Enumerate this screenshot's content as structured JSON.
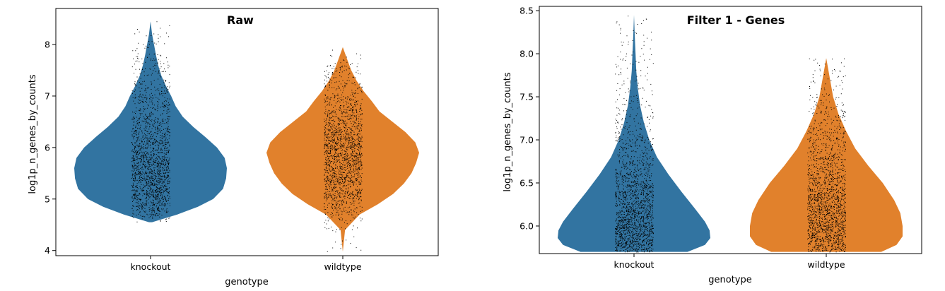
{
  "chart_data": [
    {
      "type": "violin",
      "title": "Raw",
      "xlabel": "genotype",
      "ylabel": "log1p_n_genes_by_counts",
      "categories": [
        "knockout",
        "wildtype"
      ],
      "ylim": [
        3.9,
        8.7
      ],
      "yticks": [
        4,
        5,
        6,
        7,
        8
      ],
      "ytick_labels": [
        "4",
        "5",
        "6",
        "7",
        "8"
      ],
      "colors": [
        "#3274a1",
        "#e1812c"
      ],
      "violins": [
        {
          "category": "knockout",
          "min": 4.55,
          "max": 8.45,
          "density_y": [
            4.55,
            4.7,
            4.85,
            5.0,
            5.2,
            5.4,
            5.6,
            5.8,
            6.0,
            6.2,
            6.4,
            6.6,
            6.8,
            7.0,
            7.2,
            7.4,
            7.6,
            7.8,
            8.0,
            8.2,
            8.45
          ],
          "density_w": [
            0.02,
            0.35,
            0.62,
            0.82,
            0.95,
            0.99,
            1.0,
            0.97,
            0.87,
            0.72,
            0.56,
            0.42,
            0.33,
            0.27,
            0.2,
            0.14,
            0.1,
            0.07,
            0.045,
            0.02,
            0.0
          ]
        },
        {
          "category": "wildtype",
          "min": 3.98,
          "max": 7.95,
          "density_y": [
            3.98,
            4.4,
            4.7,
            4.9,
            5.1,
            5.3,
            5.5,
            5.7,
            5.9,
            6.1,
            6.3,
            6.5,
            6.7,
            6.9,
            7.1,
            7.3,
            7.5,
            7.7,
            7.95
          ],
          "density_w": [
            0.0,
            0.03,
            0.22,
            0.46,
            0.66,
            0.8,
            0.9,
            0.96,
            1.0,
            0.95,
            0.82,
            0.65,
            0.48,
            0.38,
            0.27,
            0.18,
            0.11,
            0.06,
            0.0
          ]
        }
      ]
    },
    {
      "type": "violin",
      "title": "Filter 1 - Genes",
      "xlabel": "genotype",
      "ylabel": "log1p_n_genes_by_counts",
      "categories": [
        "knockout",
        "wildtype"
      ],
      "ylim": [
        5.68,
        8.55
      ],
      "yticks": [
        6.0,
        6.5,
        7.0,
        7.5,
        8.0,
        8.5
      ],
      "ytick_labels": [
        "6.0",
        "6.5",
        "7.0",
        "7.5",
        "8.0",
        "8.5"
      ],
      "colors": [
        "#3274a1",
        "#e1812c"
      ],
      "violins": [
        {
          "category": "knockout",
          "min": 5.7,
          "max": 8.45,
          "density_y": [
            5.7,
            5.78,
            5.86,
            5.95,
            6.05,
            6.2,
            6.4,
            6.6,
            6.8,
            7.0,
            7.2,
            7.4,
            7.6,
            7.8,
            8.0,
            8.2,
            8.45
          ],
          "density_w": [
            0.7,
            0.93,
            1.0,
            0.99,
            0.93,
            0.8,
            0.62,
            0.45,
            0.3,
            0.2,
            0.13,
            0.08,
            0.05,
            0.03,
            0.02,
            0.01,
            0.0
          ]
        },
        {
          "category": "wildtype",
          "min": 5.7,
          "max": 7.95,
          "density_y": [
            5.7,
            5.78,
            5.88,
            6.0,
            6.15,
            6.3,
            6.5,
            6.7,
            6.9,
            7.1,
            7.3,
            7.5,
            7.7,
            7.95
          ],
          "density_w": [
            0.72,
            0.92,
            1.0,
            1.0,
            0.97,
            0.89,
            0.74,
            0.55,
            0.38,
            0.26,
            0.16,
            0.09,
            0.05,
            0.0
          ]
        }
      ]
    }
  ]
}
